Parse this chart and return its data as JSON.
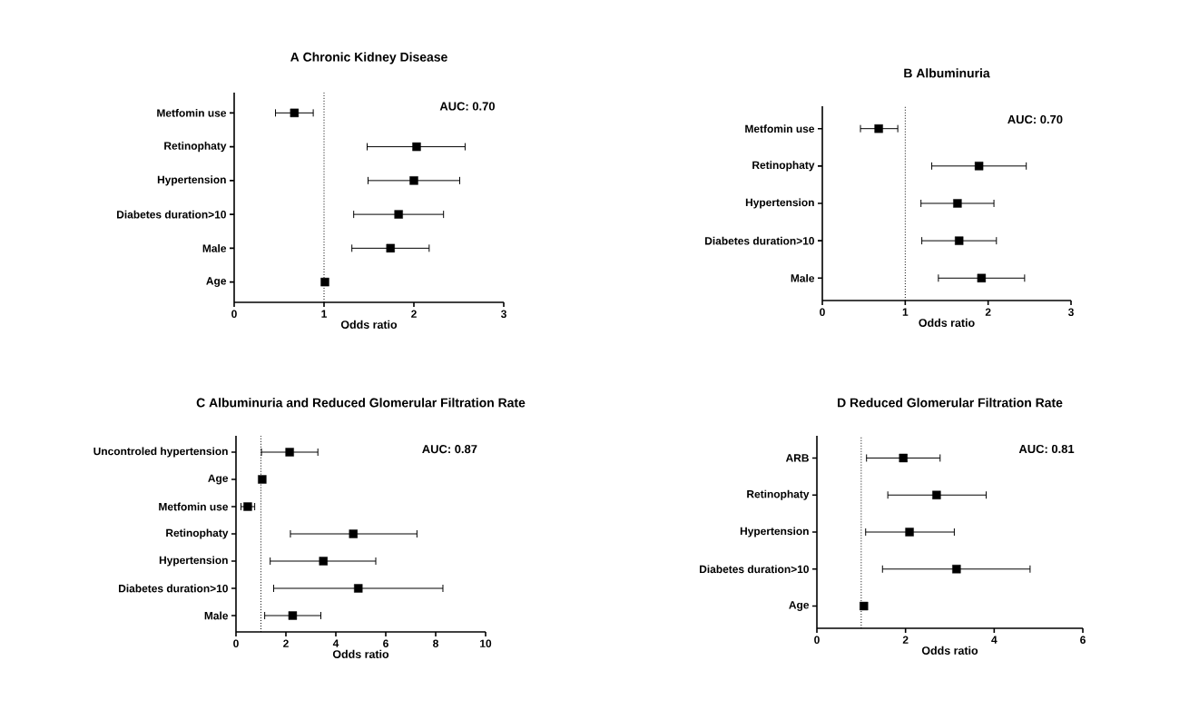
{
  "chart_data": [
    {
      "type": "scatter",
      "orientation": "horizontal",
      "title": "A    Chronic Kidney Disease",
      "xlabel": "Odds ratio",
      "categories": [
        "Metfomin use",
        "Retinophaty",
        "Hypertension",
        "Diabetes duration>10",
        "Male",
        "Age"
      ],
      "values": [
        0.67,
        2.03,
        2.0,
        1.83,
        1.74,
        1.01
      ],
      "errors": [
        [
          0.46,
          0.88
        ],
        [
          1.48,
          2.57
        ],
        [
          1.49,
          2.51
        ],
        [
          1.33,
          2.33
        ],
        [
          1.31,
          2.17
        ],
        null
      ],
      "color": "#000000",
      "marker": "square",
      "xlim": [
        0,
        3
      ],
      "xticks": [
        0,
        1,
        2,
        3
      ],
      "ref_lines": [
        {
          "axis": "x",
          "value": 1,
          "line_style": "dotted"
        }
      ],
      "annotations": [
        "AUC:  0.70"
      ]
    },
    {
      "type": "scatter",
      "orientation": "horizontal",
      "title": "B    Albuminuria",
      "xlabel": "Odds ratio",
      "categories": [
        "Metfomin use",
        "Retinophaty",
        "Hypertension",
        "Diabetes duration>10",
        "Male"
      ],
      "values": [
        0.68,
        1.89,
        1.63,
        1.65,
        1.92
      ],
      "errors": [
        [
          0.46,
          0.91
        ],
        [
          1.32,
          2.46
        ],
        [
          1.19,
          2.07
        ],
        [
          1.2,
          2.1
        ],
        [
          1.4,
          2.44
        ]
      ],
      "color": "#000000",
      "marker": "square",
      "xlim": [
        0,
        3
      ],
      "xticks": [
        0,
        1,
        2,
        3
      ],
      "ref_lines": [
        {
          "axis": "x",
          "value": 1,
          "line_style": "dotted"
        }
      ],
      "annotations": [
        "AUC:  0.70"
      ]
    },
    {
      "type": "scatter",
      "orientation": "horizontal",
      "title": "C    Albuminuria and Reduced Glomerular Filtration Rate",
      "xlabel": "Odds ratio",
      "categories": [
        "Uncontroled hypertension",
        "Age",
        "Metfomin use",
        "Retinophaty",
        "Hypertension",
        "Diabetes duration>10",
        "Male"
      ],
      "values": [
        2.15,
        1.05,
        0.47,
        4.7,
        3.5,
        4.9,
        2.27
      ],
      "errors": [
        [
          1.02,
          3.28
        ],
        null,
        [
          0.2,
          0.75
        ],
        [
          2.18,
          7.25
        ],
        [
          1.37,
          5.6
        ],
        [
          1.51,
          8.29
        ],
        [
          1.15,
          3.4
        ]
      ],
      "color": "#000000",
      "marker": "square",
      "xlim": [
        0,
        10
      ],
      "xticks": [
        0,
        2,
        4,
        6,
        8,
        10
      ],
      "ref_lines": [
        {
          "axis": "x",
          "value": 1,
          "line_style": "dotted"
        }
      ],
      "annotations": [
        "AUC:  0.87"
      ]
    },
    {
      "type": "scatter",
      "orientation": "horizontal",
      "title": "D    Reduced Glomerular Filtration Rate",
      "xlabel": "Odds ratio",
      "categories": [
        "ARB",
        "Retinophaty",
        "Hypertension",
        "Diabetes duration>10",
        "Age"
      ],
      "values": [
        1.95,
        2.7,
        2.09,
        3.15,
        1.06
      ],
      "errors": [
        [
          1.12,
          2.78
        ],
        [
          1.6,
          3.82
        ],
        [
          1.1,
          3.1
        ],
        [
          1.48,
          4.81
        ],
        null
      ],
      "color": "#000000",
      "marker": "square",
      "xlim": [
        0,
        6
      ],
      "xticks": [
        0,
        2,
        4,
        6
      ],
      "ref_lines": [
        {
          "axis": "x",
          "value": 1,
          "line_style": "dotted"
        }
      ],
      "annotations": [
        "AUC:  0.81"
      ]
    }
  ]
}
